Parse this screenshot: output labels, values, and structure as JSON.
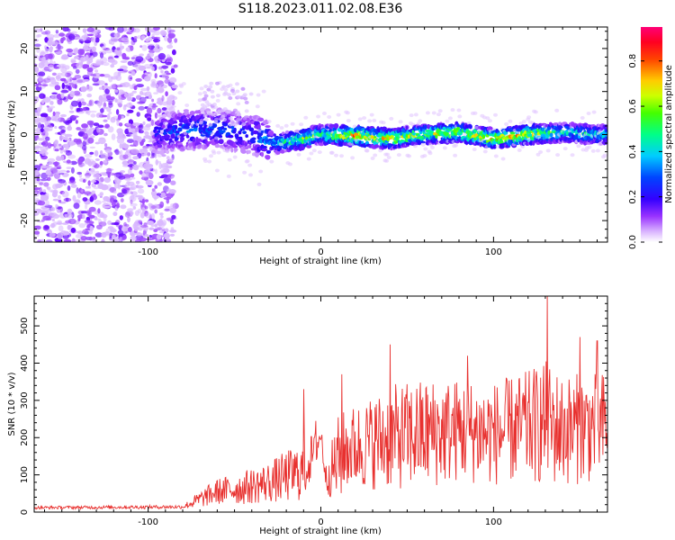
{
  "title": "S118.2023.011.02.08.E36",
  "chart_data": [
    {
      "type": "heatmap",
      "xlabel": "Height of straight line (km)",
      "ylabel": "Frequency (Hz)",
      "xlim": [
        -166,
        166
      ],
      "ylim": [
        -25,
        25
      ],
      "x_ticks": [
        -100,
        0,
        100
      ],
      "y_ticks": [
        -20,
        -10,
        0,
        10,
        20
      ],
      "colorbar": {
        "label": "Normalized spectral amplitude",
        "range": [
          0,
          0.95
        ],
        "ticks": [
          "0.0",
          "0.2",
          "0.4",
          "0.6",
          "0.8"
        ],
        "colormap": [
          "#ffffff",
          "#e6ccff",
          "#9933ff",
          "#4400ff",
          "#0000ff",
          "#00ffff",
          "#00ff00",
          "#ffff00",
          "#ff8800",
          "#ff0000",
          "#ff0066"
        ]
      },
      "ridge": {
        "description_free": true,
        "x": [
          -96,
          -80,
          -60,
          -40,
          -25,
          -10,
          0,
          20,
          40,
          60,
          80,
          100,
          120,
          140,
          160,
          166
        ],
        "frequency": [
          0,
          1,
          1.5,
          0,
          -2,
          -1,
          0,
          -0.3,
          -1,
          0,
          0.5,
          -1,
          0,
          0.5,
          0,
          0
        ],
        "amplitude": [
          0.25,
          0.35,
          0.35,
          0.3,
          0.5,
          0.7,
          0.6,
          0.85,
          0.8,
          0.7,
          0.75,
          0.85,
          0.8,
          0.55,
          0.5,
          0.5
        ]
      },
      "noise_region_x": [
        -166,
        -84
      ]
    },
    {
      "type": "line",
      "xlabel": "Height of straight line (km)",
      "ylabel": "SNR (10 * v/v)",
      "xlim": [
        -166,
        166
      ],
      "ylim": [
        0,
        580
      ],
      "x_ticks": [
        -100,
        0,
        100
      ],
      "y_ticks": [
        0,
        100,
        200,
        300,
        400,
        500
      ],
      "color": "#e8312f",
      "envelope": {
        "x": [
          -166,
          -80,
          -72,
          -60,
          -45,
          -30,
          -20,
          -10,
          -3,
          0,
          3,
          10,
          15,
          25,
          40,
          60,
          80,
          100,
          120,
          130,
          140,
          160,
          166
        ],
        "mean": [
          12,
          14,
          30,
          55,
          65,
          80,
          95,
          110,
          170,
          210,
          90,
          140,
          170,
          180,
          200,
          210,
          220,
          210,
          230,
          240,
          220,
          230,
          230
        ],
        "amplitude": [
          4,
          5,
          20,
          35,
          45,
          55,
          70,
          80,
          50,
          40,
          40,
          120,
          110,
          120,
          140,
          150,
          140,
          140,
          150,
          170,
          150,
          150,
          150
        ]
      },
      "peaks": [
        [
          -10,
          330
        ],
        [
          -3,
          245
        ],
        [
          12,
          370
        ],
        [
          40,
          450
        ],
        [
          85,
          420
        ],
        [
          131,
          580
        ],
        [
          150,
          470
        ],
        [
          160,
          460
        ]
      ]
    }
  ]
}
